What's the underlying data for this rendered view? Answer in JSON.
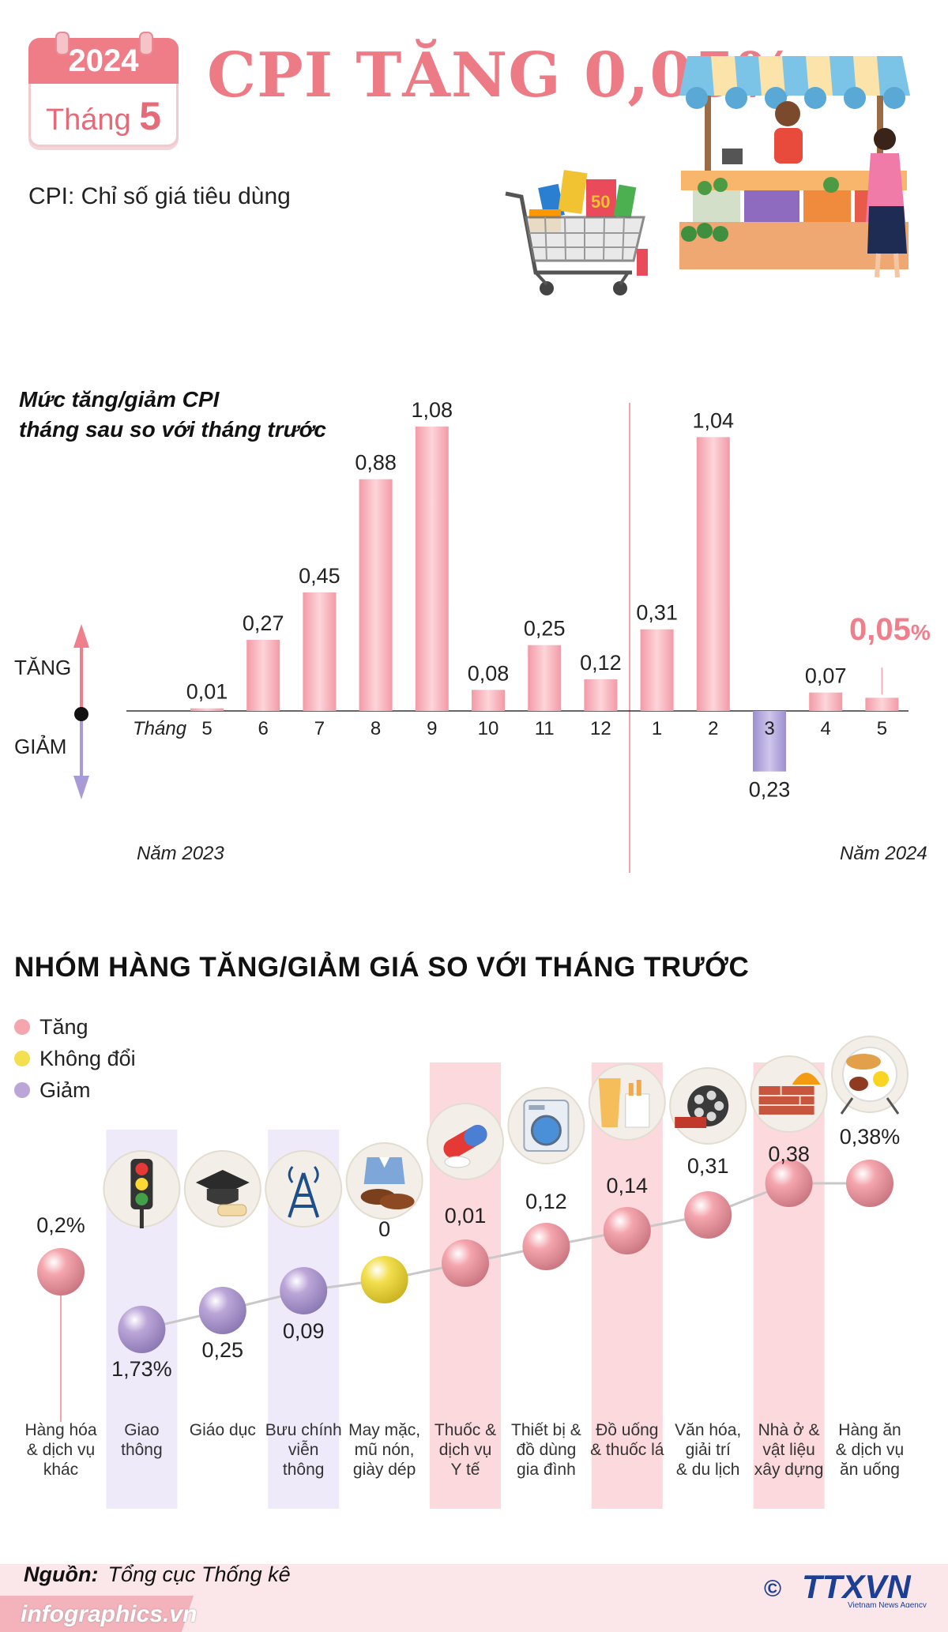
{
  "header": {
    "calendar_year": "2024",
    "calendar_month_label": "Tháng",
    "calendar_month_number": "5",
    "title": "CPI TĂNG 0,05%",
    "subtitle": "CPI: Chỉ số giá tiêu dùng"
  },
  "chart1": {
    "title_line1": "Mức tăng/giảm CPI",
    "title_line2": "tháng sau so với tháng trước",
    "increase_label": "TĂNG",
    "decrease_label": "GIẢM",
    "month_axis_label": "Tháng",
    "year_left_label": "Năm 2023",
    "year_right_label": "Năm 2024",
    "highlight_value": "0,05",
    "highlight_unit": "%"
  },
  "chart_data": [
    {
      "type": "bar",
      "title": "Mức tăng/giảm CPI tháng sau so với tháng trước",
      "categories": [
        "5",
        "6",
        "7",
        "8",
        "9",
        "10",
        "11",
        "12",
        "1",
        "2",
        "3",
        "4",
        "5"
      ],
      "values": [
        0.01,
        0.27,
        0.45,
        0.88,
        1.08,
        0.08,
        0.25,
        0.12,
        0.31,
        1.04,
        -0.23,
        0.07,
        0.05
      ],
      "value_labels": [
        "0,01",
        "0,27",
        "0,45",
        "0,88",
        "1,08",
        "0,08",
        "0,25",
        "0,12",
        "0,31",
        "1,04",
        "0,23",
        "0,07",
        "0,05%"
      ],
      "xlabel": "Tháng",
      "years": [
        "Năm 2023",
        "Năm 2024"
      ],
      "colors": {
        "increase": "#f7b9c0",
        "decrease": "#b3a6d8",
        "highlight": "#ef7f8b"
      }
    },
    {
      "type": "scatter",
      "title": "NHÓM HÀNG TĂNG/GIẢM GIÁ SO VỚI THÁNG TRƯỚC",
      "categories": [
        "Hàng hóa & dịch vụ khác",
        "Giao thông",
        "Giáo dục",
        "Bưu chính viễn thông",
        "May mặc, mũ nón, giày dép",
        "Thuốc & dịch vụ Y tế",
        "Thiết bị & đồ dùng gia đình",
        "Đồ uống & thuốc lá",
        "Văn hóa, giải trí & du lịch",
        "Nhà ở & vật liệu xây dựng",
        "Hàng ăn & dịch vụ ăn uống"
      ],
      "values": [
        0.2,
        -1.73,
        -0.25,
        -0.09,
        0,
        0.01,
        0.12,
        0.14,
        0.31,
        0.38,
        0.38
      ],
      "value_labels": [
        "0,2%",
        "1,73%",
        "0,25",
        "0,09",
        "0",
        "0,01",
        "0,12",
        "0,14",
        "0,31",
        "0,38",
        "0,38%"
      ],
      "status": [
        "up",
        "down",
        "down",
        "down",
        "same",
        "up",
        "up",
        "up",
        "up",
        "up",
        "up"
      ],
      "legend": [
        {
          "label": "Tăng",
          "color": "#f4a5ad"
        },
        {
          "label": "Không đổi",
          "color": "#f3df4f"
        },
        {
          "label": "Giảm",
          "color": "#bca6d8"
        }
      ]
    }
  ],
  "section2": {
    "title": "NHÓM HÀNG TĂNG/GIẢM GIÁ SO VỚI THÁNG TRƯỚC",
    "category_lines": [
      [
        "Hàng hóa",
        "& dịch vụ",
        "khác"
      ],
      [
        "Giao",
        "thông"
      ],
      [
        "Giáo dục"
      ],
      [
        "Bưu chính",
        "viễn",
        "thông"
      ],
      [
        "May mặc,",
        "mũ nón,",
        "giày dép"
      ],
      [
        "Thuốc &",
        "dịch vụ",
        "Y tế"
      ],
      [
        "Thiết bị &",
        "đồ dùng",
        "gia đình"
      ],
      [
        "Đồ uống",
        "& thuốc lá"
      ],
      [
        "Văn hóa,",
        "giải trí",
        "& du lịch"
      ],
      [
        "Nhà ở &",
        "vật liệu",
        "xây dựng"
      ],
      [
        "Hàng ăn",
        "& dịch vụ",
        "ăn uống"
      ]
    ],
    "icons": [
      "",
      "traffic-light-icon",
      "graduation-cap-icon",
      "radio-tower-icon",
      "clothing-shoes-icon",
      "medicine-capsule-icon",
      "washing-machine-icon",
      "drink-cigarette-icon",
      "film-reel-icon",
      "bricks-helmet-icon",
      "food-plate-icon"
    ]
  },
  "footer": {
    "source_label": "Nguồn:",
    "source_value": "Tổng cục Thống kê",
    "site": "infographics.vn",
    "copyright": "©",
    "logo_text": "TTXVN",
    "logo_subtext": "Vietnam News Agency"
  },
  "colors": {
    "accent": "#ec7b86",
    "increase": "#f4a5ad",
    "decrease": "#bca6d8",
    "unchanged": "#f3df4f",
    "logo_blue": "#1c3f94"
  }
}
